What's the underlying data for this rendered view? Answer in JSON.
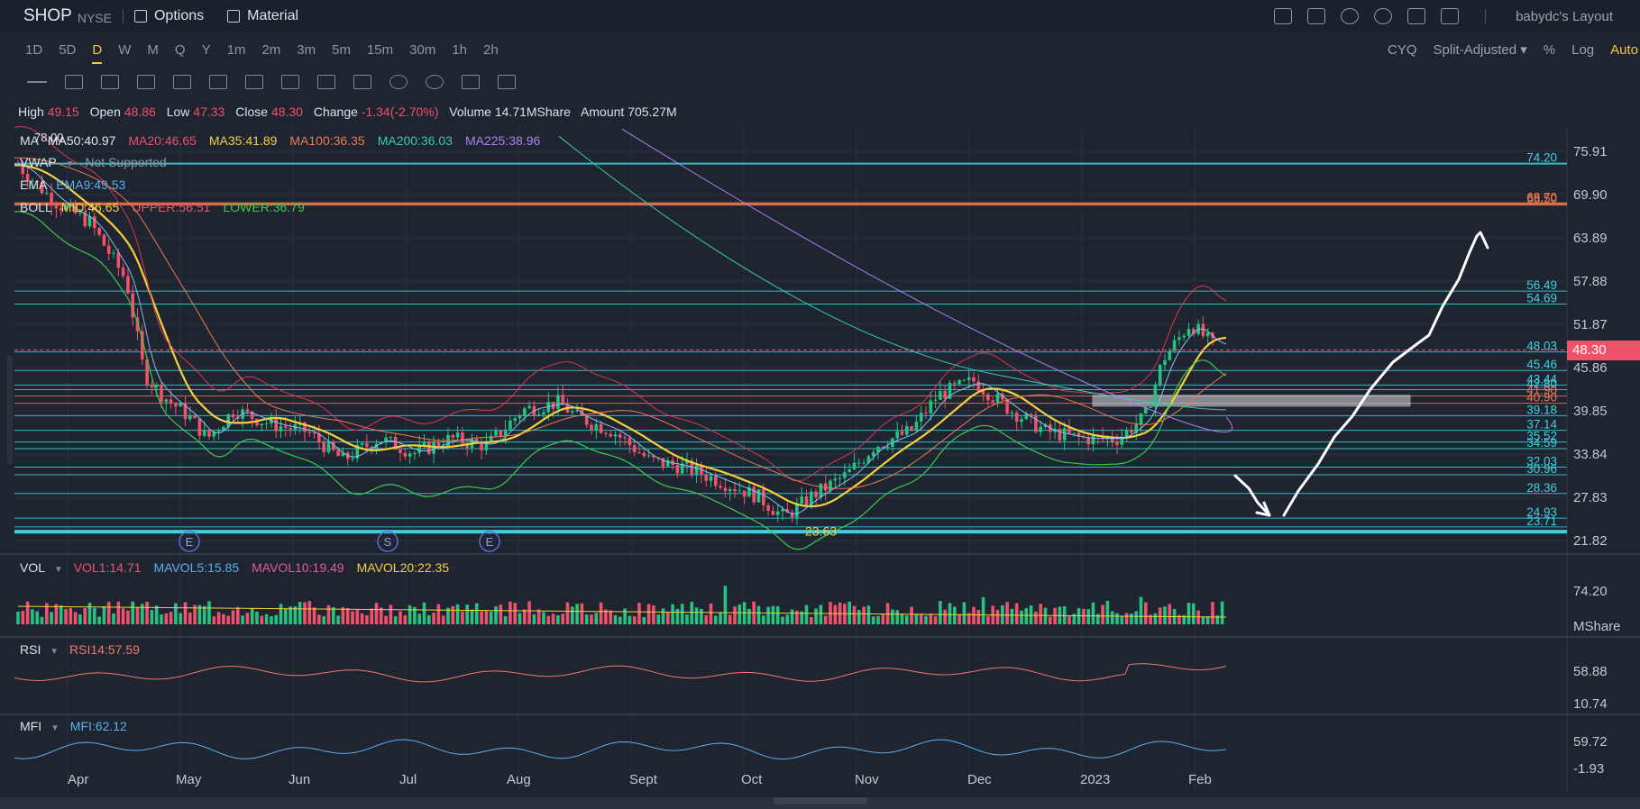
{
  "header": {
    "symbol": "SHOP",
    "exchange": "NYSE",
    "options_label": "Options",
    "material_label": "Material",
    "layout_label": "babydc's Layout",
    "icons": [
      "chart-icon",
      "edit-icon",
      "refresh-icon",
      "settings-icon",
      "fullscreen-icon",
      "grid-icon"
    ]
  },
  "periods": [
    "1D",
    "5D",
    "D",
    "W",
    "M",
    "Q",
    "Y",
    "1m",
    "2m",
    "3m",
    "5m",
    "15m",
    "30m",
    "1h",
    "2h"
  ],
  "active_period": "D",
  "right_options": {
    "cyq": "CYQ",
    "adjust": "Split-Adjusted ▾",
    "percent": "%",
    "log": "Log",
    "auto": "Auto"
  },
  "ohlc": {
    "high_label": "High",
    "high": "49.15",
    "open_label": "Open",
    "open": "48.86",
    "low_label": "Low",
    "low": "47.33",
    "close_label": "Close",
    "close": "48.30",
    "change_label": "Change",
    "change": "-1.34(-2.70%)",
    "volume_label": "Volume",
    "volume": "14.71MShare",
    "amount_label": "Amount",
    "amount": "705.27M"
  },
  "indicators": {
    "ma": {
      "name": "MA",
      "items": [
        {
          "text": "MA50:40.97",
          "color": "#e6e9ef"
        },
        {
          "text": "MA20:46.65",
          "color": "#f0516b"
        },
        {
          "text": "MA35:41.89",
          "color": "#f4d03f"
        },
        {
          "text": "MA100:36.35",
          "color": "#f07850"
        },
        {
          "text": "MA200:36.03",
          "color": "#38c9b4"
        },
        {
          "text": "MA225:38.96",
          "color": "#b07ff2"
        }
      ]
    },
    "vwap": {
      "name": "VWAP",
      "value": "Not Supported"
    },
    "ema": {
      "name": "EMA",
      "value": "EMA9:49.53"
    },
    "boll": {
      "name": "BOLL",
      "items": [
        {
          "text": "MID:46.65",
          "color": "#f4d03f"
        },
        {
          "text": "UPPER:56.51",
          "color": "#f0516b"
        },
        {
          "text": "LOWER:36.79",
          "color": "#3ec94f"
        }
      ]
    },
    "vol": {
      "name": "VOL",
      "items": [
        {
          "text": "VOL1:14.71",
          "color": "#f0516b"
        },
        {
          "text": "MAVOL5:15.85",
          "color": "#5ab0f0"
        },
        {
          "text": "MAVOL10:19.49",
          "color": "#e05aa8"
        },
        {
          "text": "MAVOL20:22.35",
          "color": "#f4d03f"
        }
      ]
    },
    "rsi": {
      "name": "RSI",
      "value": "RSI14:57.59"
    },
    "mfi": {
      "name": "MFI",
      "value": "MFI:62.12"
    }
  },
  "chart_data": {
    "type": "line",
    "title": "",
    "current_price": "48.30",
    "price_axis": [
      "75.91",
      "69.90",
      "63.89",
      "57.88",
      "51.87",
      "45.86",
      "39.85",
      "33.84",
      "27.83",
      "21.82"
    ],
    "ylim": [
      21.82,
      75.91
    ],
    "x_labels": [
      "Apr",
      "May",
      "Jun",
      "Jul",
      "Aug",
      "Sept",
      "Oct",
      "Nov",
      "Dec",
      "2023",
      "Feb"
    ],
    "price_levels": [
      {
        "value": 74.2,
        "label": "74.20",
        "color": "#3fd0e0"
      },
      {
        "value": 68.7,
        "label": "68.70",
        "color": "#f07850"
      },
      {
        "value": 68.5,
        "label": "68.50",
        "color": "#f07850"
      },
      {
        "value": 56.49,
        "label": "56.49",
        "color": "#3fd0e0"
      },
      {
        "value": 54.69,
        "label": "54.69",
        "color": "#3fd0e0"
      },
      {
        "value": 48.03,
        "label": "48.03",
        "color": "#3fd0e0"
      },
      {
        "value": 45.46,
        "label": "45.46",
        "color": "#3fd0e0"
      },
      {
        "value": 43.44,
        "label": "43.44",
        "color": "#3fd0e0"
      },
      {
        "value": 42.8,
        "label": "42.80",
        "color": "#3fd0e0"
      },
      {
        "value": 41.9,
        "label": "41.90",
        "color": "#f07850"
      },
      {
        "value": 40.9,
        "label": "40.90",
        "color": "#f07850"
      },
      {
        "value": 39.18,
        "label": "39.18",
        "color": "#3fd0e0"
      },
      {
        "value": 37.14,
        "label": "37.14",
        "color": "#3fd0e0"
      },
      {
        "value": 35.52,
        "label": "35.52",
        "color": "#3fd0e0"
      },
      {
        "value": 34.59,
        "label": "34.59",
        "color": "#3fd0e0"
      },
      {
        "value": 32.03,
        "label": "32.03",
        "color": "#3fd0e0"
      },
      {
        "value": 30.96,
        "label": "30.96",
        "color": "#3fd0e0"
      },
      {
        "value": 28.36,
        "label": "28.36",
        "color": "#3fd0e0"
      },
      {
        "value": 24.93,
        "label": "24.93",
        "color": "#3fd0e0"
      },
      {
        "value": 23.71,
        "label": "23.71",
        "color": "#3fd0e0"
      }
    ],
    "low_annotation": "23.63",
    "high_annotation": "78.00",
    "event_markers": [
      "E",
      "S",
      "E"
    ],
    "vol_axis": [
      "74.20",
      "MShare"
    ],
    "rsi_axis": [
      "58.88",
      "10.74"
    ],
    "mfi_axis": [
      "59.72",
      "-1.93"
    ]
  }
}
